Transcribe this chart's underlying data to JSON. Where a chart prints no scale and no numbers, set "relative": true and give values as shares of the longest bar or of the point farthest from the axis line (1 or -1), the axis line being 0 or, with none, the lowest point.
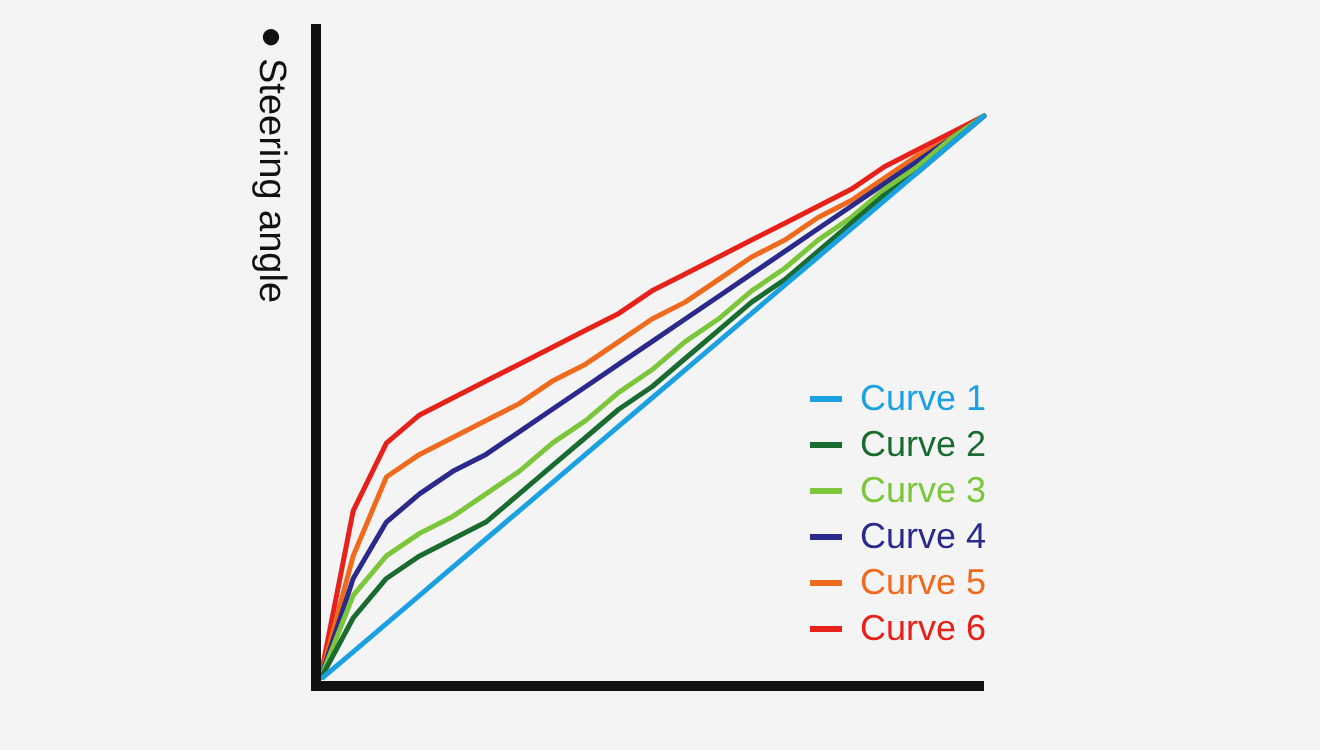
{
  "chart_data": {
    "type": "line",
    "relative": true,
    "ylabel": "●Steering angle",
    "legend": "right",
    "marker": "none",
    "line_style": "solid",
    "grid": false,
    "categories": [
      null,
      null,
      null,
      null,
      null,
      null,
      null,
      null,
      null,
      null,
      null,
      null,
      null,
      null,
      null,
      null,
      null,
      null,
      null,
      null,
      null
    ],
    "series": [
      {
        "name": "Curve 1",
        "color": "#1ba1e2",
        "values": [
          0,
          0.05,
          0.1,
          0.15,
          0.2,
          0.25,
          0.3,
          0.35,
          0.4,
          0.45,
          0.5,
          0.55,
          0.6,
          0.65,
          0.7,
          0.75,
          0.8,
          0.85,
          0.9,
          0.95,
          1
        ]
      },
      {
        "name": "Curve 2",
        "color": "#1a6b30",
        "values": [
          0,
          0.11,
          0.18,
          0.22,
          0.25,
          0.28,
          0.33,
          0.38,
          0.43,
          0.48,
          0.52,
          0.57,
          0.62,
          0.67,
          0.71,
          0.76,
          0.81,
          0.86,
          0.9,
          0.95,
          1
        ]
      },
      {
        "name": "Curve 3",
        "color": "#7cc63c",
        "values": [
          0,
          0.15,
          0.22,
          0.26,
          0.29,
          0.33,
          0.37,
          0.42,
          0.46,
          0.51,
          0.55,
          0.6,
          0.64,
          0.69,
          0.73,
          0.78,
          0.82,
          0.87,
          0.91,
          0.96,
          1
        ]
      },
      {
        "name": "Curve 4",
        "color": "#2b2a8c",
        "values": [
          0,
          0.18,
          0.28,
          0.33,
          0.37,
          0.4,
          0.44,
          0.48,
          0.52,
          0.56,
          0.6,
          0.64,
          0.68,
          0.72,
          0.76,
          0.8,
          0.84,
          0.88,
          0.92,
          0.96,
          1
        ]
      },
      {
        "name": "Curve 5",
        "color": "#f06a1e",
        "values": [
          0,
          0.22,
          0.36,
          0.4,
          0.43,
          0.46,
          0.49,
          0.53,
          0.56,
          0.6,
          0.64,
          0.67,
          0.71,
          0.75,
          0.78,
          0.82,
          0.85,
          0.89,
          0.93,
          0.96,
          1
        ]
      },
      {
        "name": "Curve 6",
        "color": "#e8201a",
        "values": [
          0,
          0.3,
          0.42,
          0.47,
          0.5,
          0.53,
          0.56,
          0.59,
          0.62,
          0.65,
          0.69,
          0.72,
          0.75,
          0.78,
          0.81,
          0.84,
          0.87,
          0.91,
          0.94,
          0.97,
          1
        ]
      }
    ]
  }
}
